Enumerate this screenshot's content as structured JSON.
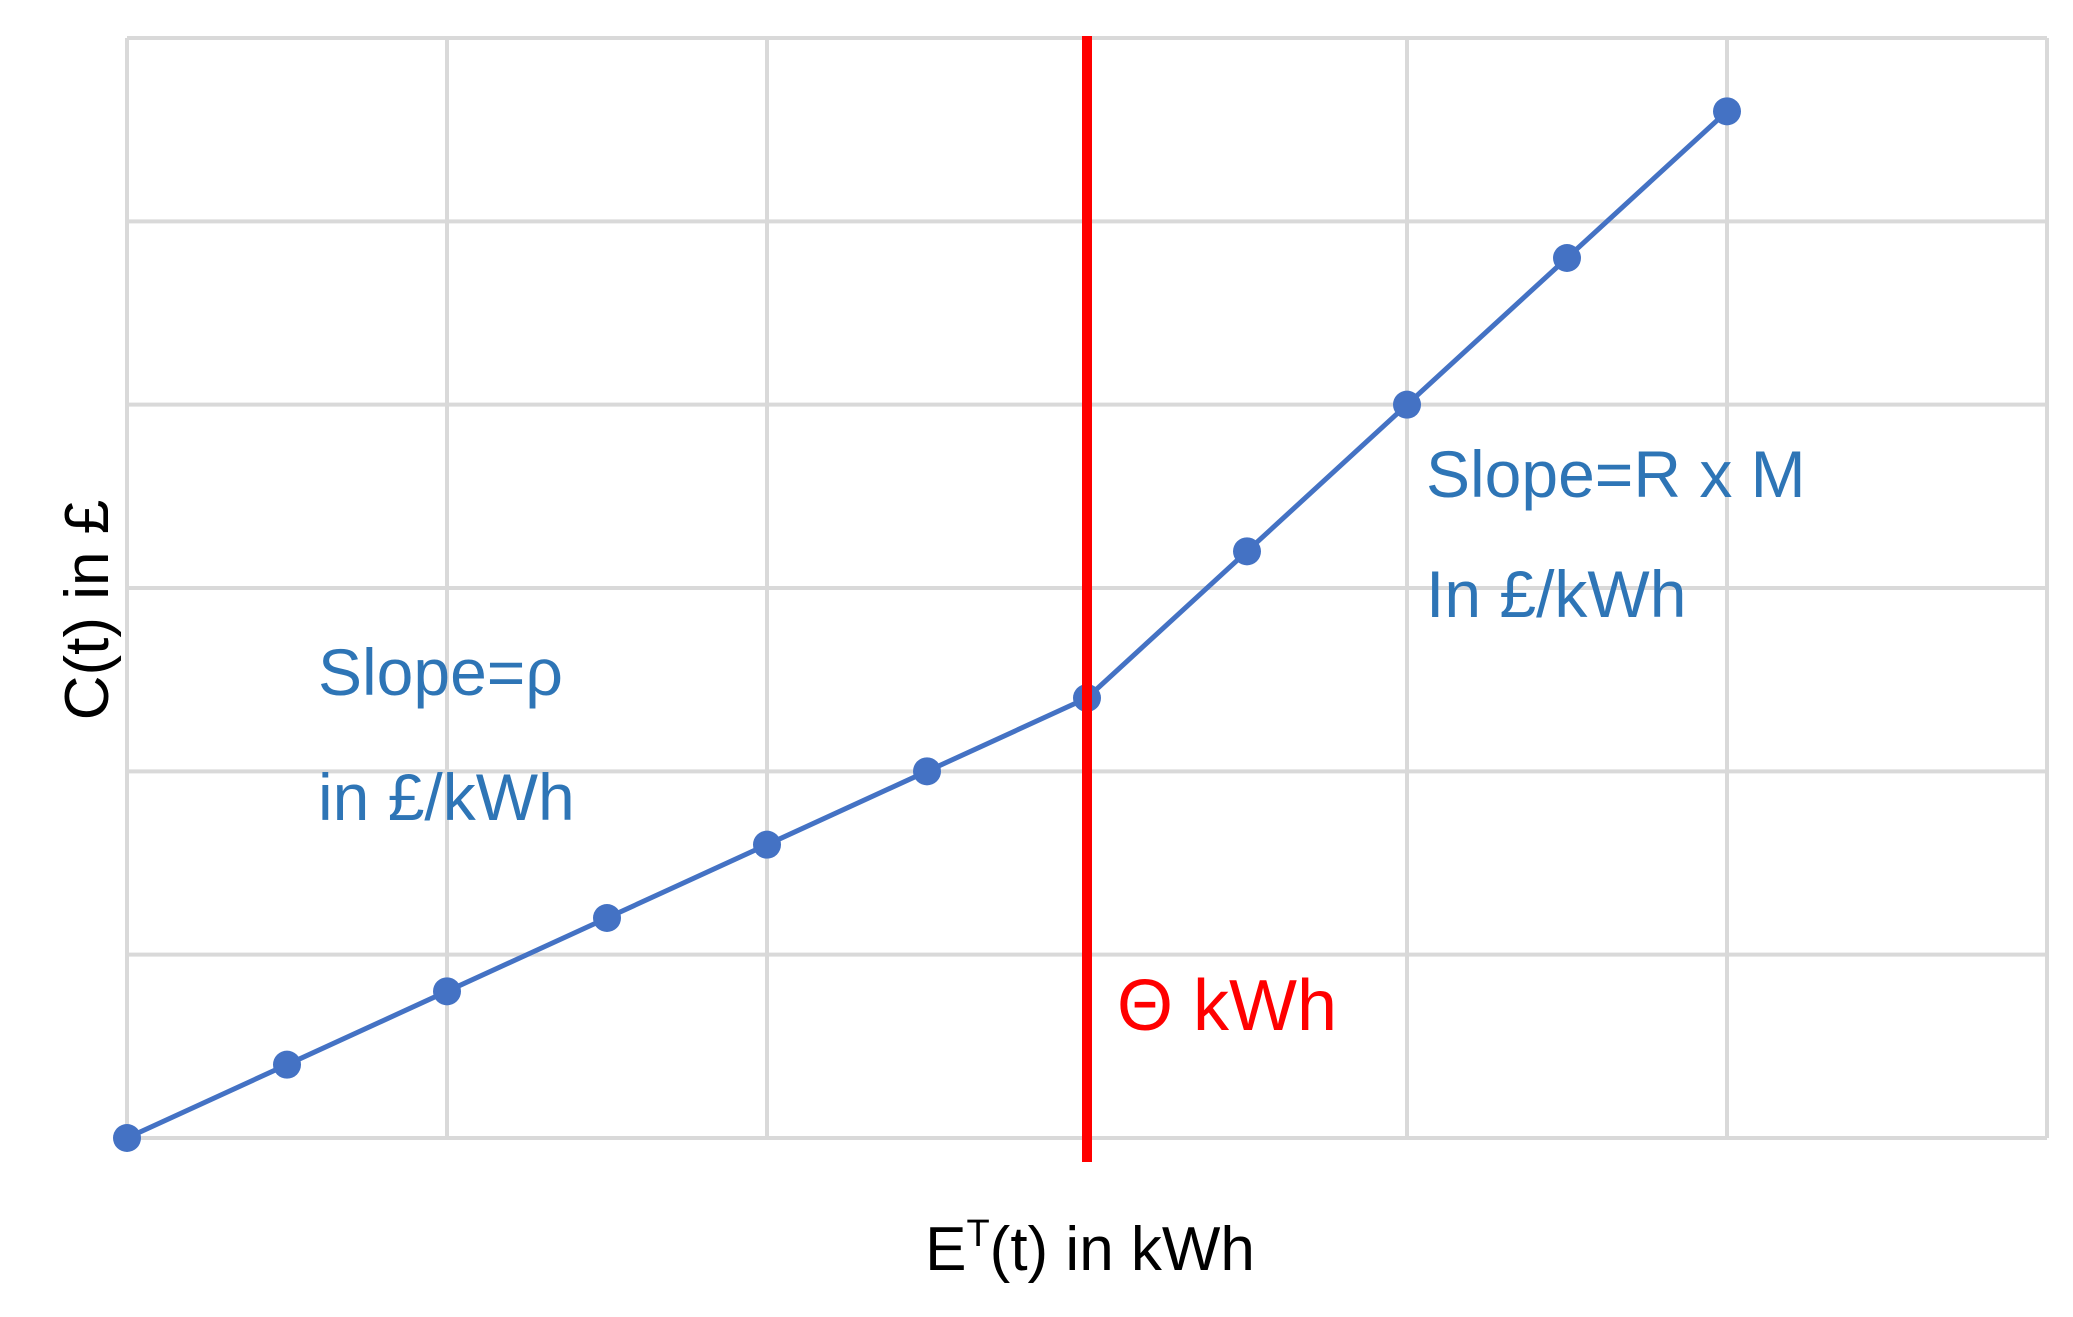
{
  "chart_data": {
    "type": "line",
    "title": "",
    "xlabel": {
      "base": "E",
      "superscript": "T",
      "rest": "(t) in kWh"
    },
    "ylabel": "C(t) in £",
    "x_ticks_labeled": false,
    "y_ticks_labeled": false,
    "grid": true,
    "xlim": [
      0,
      12
    ],
    "ylim": [
      0,
      6
    ],
    "series": [
      {
        "x": [
          0,
          1,
          2,
          3,
          4,
          5,
          6,
          7,
          8,
          9,
          10
        ],
        "y": [
          0,
          0.4,
          0.8,
          1.2,
          1.6,
          2.0,
          2.4,
          3.2,
          4.0,
          4.8,
          5.6
        ]
      }
    ],
    "threshold": {
      "x": 6,
      "label": "Θ kWh"
    },
    "annotations": [
      {
        "id": "slope-low",
        "lines": [
          "Slope=ρ",
          "in £/kWh"
        ]
      },
      {
        "id": "slope-high",
        "lines": [
          "Slope=R x M",
          "In £/kWh"
        ]
      }
    ]
  },
  "colors": {
    "series": "#4472c4",
    "threshold": "#ff0000",
    "annotation": "#2e75b6",
    "grid": "#d9d9d9",
    "axis_text": "#000000"
  }
}
